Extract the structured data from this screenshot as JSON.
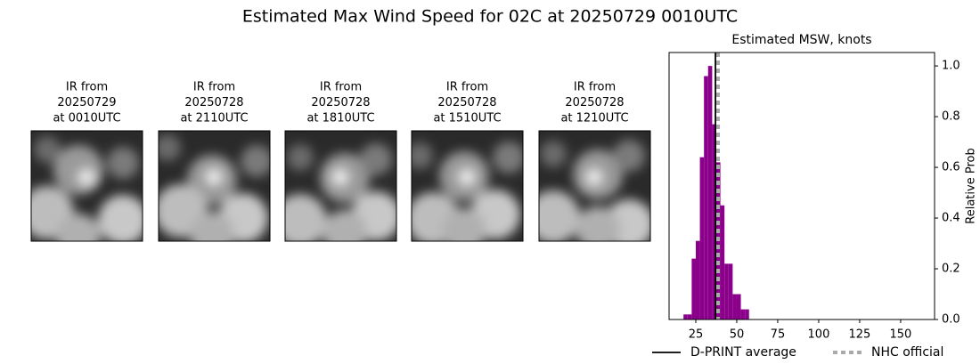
{
  "title": "Estimated Max Wind Speed for 02C at 20250729 0010UTC",
  "panels": [
    {
      "lines": [
        "IR from",
        "20250729",
        "at 0010UTC"
      ]
    },
    {
      "lines": [
        "IR from",
        "20250728",
        "at 2110UTC"
      ]
    },
    {
      "lines": [
        "IR from",
        "20250728",
        "at 1810UTC"
      ]
    },
    {
      "lines": [
        "IR from",
        "20250728",
        "at 1510UTC"
      ]
    },
    {
      "lines": [
        "IR from",
        "20250728",
        "at 1210UTC"
      ]
    }
  ],
  "chart_data": {
    "type": "histogram",
    "title": "Estimated MSW, knots",
    "y_label": "Relative Prob",
    "color": "#8b008b",
    "bins": [
      17.5,
      20,
      22.5,
      25,
      27.5,
      30,
      32.5,
      35,
      37.5,
      40,
      42.5,
      45,
      47.5,
      50,
      52.5,
      55,
      57.5
    ],
    "values": [
      0.02,
      0.02,
      0.24,
      0.31,
      0.64,
      0.96,
      1.0,
      0.77,
      0.62,
      0.45,
      0.22,
      0.22,
      0.1,
      0.1,
      0.04,
      0.04
    ],
    "xlim": [
      8.7,
      170.7
    ],
    "ylim": [
      0,
      1.053
    ],
    "xticks": [
      25,
      50,
      75,
      100,
      125,
      150
    ],
    "yticks": [
      {
        "value": 0,
        "label": "0.0"
      },
      0.2,
      0.4,
      0.6,
      0.8,
      {
        "value": 1,
        "label": "1.0"
      }
    ],
    "vlines": [
      {
        "name": "D-PRINT average",
        "value": 37,
        "color": "#000000",
        "style": "solid"
      },
      {
        "name": "NHC official",
        "value": 38.6,
        "color": "#aaaaaa",
        "style": "dotted"
      }
    ]
  }
}
